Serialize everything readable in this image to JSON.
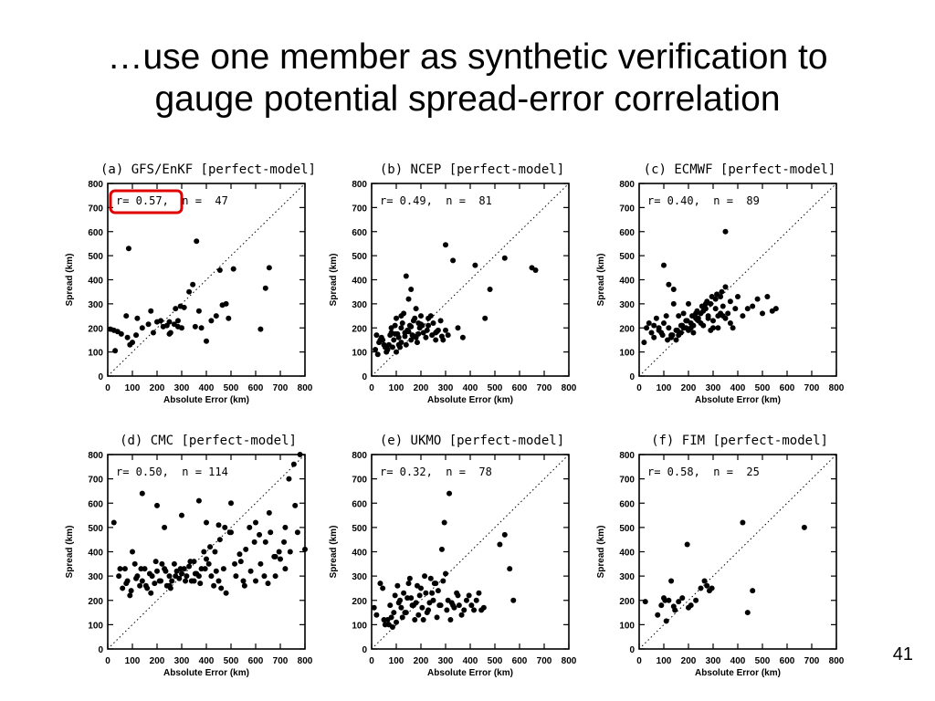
{
  "slide": {
    "title_line1": "…use one member as synthetic verification to",
    "title_line2": "gauge potential spread-error correlation",
    "page_number": "41"
  },
  "chart_data": [
    {
      "type": "scatter",
      "title": "(a) GFS/EnKF [perfect-model]",
      "stats": "r= 0.57,  n =  47",
      "highlighted": true,
      "highlight_color": "#e00000",
      "xlabel": "Absolute Error (km)",
      "ylabel": "Spread (km)",
      "xlim": [
        0,
        800
      ],
      "ylim": [
        0,
        800
      ],
      "ticks": [
        0,
        100,
        200,
        300,
        400,
        500,
        600,
        700,
        800
      ],
      "reference_line": "y = x (dotted)",
      "x": [
        10,
        25,
        40,
        30,
        55,
        80,
        100,
        115,
        90,
        75,
        120,
        140,
        165,
        175,
        185,
        200,
        215,
        225,
        240,
        250,
        255,
        270,
        275,
        285,
        300,
        285,
        310,
        330,
        345,
        360,
        380,
        400,
        420,
        440,
        455,
        465,
        480,
        490,
        510,
        620,
        640,
        655,
        85,
        370,
        355,
        295,
        250
      ],
      "y": [
        195,
        190,
        185,
        105,
        175,
        160,
        140,
        170,
        130,
        250,
        240,
        200,
        215,
        270,
        180,
        225,
        230,
        205,
        210,
        225,
        180,
        215,
        280,
        205,
        200,
        230,
        285,
        350,
        380,
        560,
        200,
        145,
        230,
        250,
        440,
        295,
        300,
        240,
        445,
        195,
        365,
        450,
        530,
        270,
        205,
        290,
        175
      ]
    },
    {
      "type": "scatter",
      "title": "(b) NCEP [perfect-model]",
      "stats": "r= 0.49,  n =  81",
      "xlabel": "Absolute Error (km)",
      "ylabel": "Spread (km)",
      "xlim": [
        0,
        800
      ],
      "ylim": [
        0,
        800
      ],
      "ticks": [
        0,
        100,
        200,
        300,
        400,
        500,
        600,
        700,
        800
      ],
      "reference_line": "y = x (dotted)",
      "x": [
        15,
        25,
        30,
        40,
        45,
        55,
        60,
        70,
        75,
        80,
        90,
        95,
        100,
        105,
        110,
        115,
        120,
        125,
        130,
        135,
        140,
        145,
        150,
        155,
        160,
        165,
        170,
        175,
        180,
        185,
        190,
        195,
        200,
        210,
        220,
        230,
        240,
        250,
        260,
        270,
        280,
        290,
        300,
        310,
        330,
        350,
        370,
        420,
        460,
        480,
        540,
        650,
        665,
        20,
        35,
        50,
        65,
        85,
        100,
        110,
        120,
        135,
        150,
        160,
        175,
        190,
        205,
        225,
        245,
        265,
        285,
        95,
        140,
        160,
        180,
        200,
        230,
        260,
        300,
        120,
        80
      ],
      "y": [
        110,
        90,
        140,
        160,
        150,
        120,
        100,
        130,
        170,
        180,
        150,
        210,
        240,
        175,
        160,
        120,
        200,
        220,
        260,
        180,
        130,
        190,
        320,
        210,
        150,
        170,
        230,
        240,
        160,
        140,
        220,
        200,
        250,
        180,
        160,
        210,
        250,
        220,
        180,
        190,
        230,
        150,
        545,
        170,
        480,
        200,
        160,
        460,
        240,
        360,
        490,
        450,
        440,
        170,
        150,
        130,
        110,
        120,
        100,
        130,
        140,
        165,
        185,
        205,
        165,
        175,
        210,
        190,
        170,
        185,
        165,
        175,
        415,
        360,
        280,
        215,
        240,
        150,
        190,
        250,
        200
      ]
    },
    {
      "type": "scatter",
      "title": "(c) ECMWF [perfect-model]",
      "stats": "r= 0.40,  n =  89",
      "xlabel": "Absolute Error (km)",
      "ylabel": "Spread (km)",
      "xlim": [
        0,
        800
      ],
      "ylim": [
        0,
        800
      ],
      "ticks": [
        0,
        100,
        200,
        300,
        400,
        500,
        600,
        700,
        800
      ],
      "reference_line": "y = x (dotted)",
      "x": [
        20,
        30,
        40,
        50,
        60,
        70,
        80,
        90,
        100,
        110,
        120,
        130,
        140,
        150,
        160,
        170,
        180,
        190,
        200,
        210,
        220,
        230,
        240,
        250,
        260,
        270,
        280,
        290,
        300,
        310,
        320,
        330,
        340,
        350,
        360,
        370,
        380,
        390,
        400,
        420,
        440,
        460,
        480,
        500,
        520,
        540,
        555,
        100,
        120,
        140,
        160,
        180,
        200,
        220,
        240,
        260,
        280,
        300,
        320,
        340,
        130,
        150,
        170,
        190,
        210,
        230,
        250,
        270,
        290,
        310,
        330,
        350,
        370,
        60,
        80,
        95,
        115,
        135,
        155,
        175,
        195,
        215,
        235,
        255,
        275,
        295,
        315,
        335,
        350
      ],
      "y": [
        140,
        200,
        220,
        180,
        160,
        240,
        200,
        180,
        220,
        250,
        200,
        160,
        360,
        190,
        170,
        210,
        260,
        230,
        300,
        200,
        180,
        260,
        240,
        220,
        210,
        300,
        250,
        190,
        230,
        280,
        200,
        330,
        250,
        370,
        260,
        310,
        200,
        280,
        330,
        250,
        280,
        290,
        320,
        260,
        330,
        270,
        280,
        460,
        380,
        300,
        250,
        200,
        190,
        210,
        230,
        270,
        240,
        200,
        250,
        290,
        170,
        150,
        180,
        200,
        220,
        240,
        260,
        280,
        300,
        320,
        260,
        240,
        220,
        210,
        190,
        170,
        150,
        170,
        190,
        210,
        230,
        250,
        270,
        290,
        310,
        330,
        340,
        350,
        600
      ]
    },
    {
      "type": "scatter",
      "title": "(d) CMC [perfect-model]",
      "stats": "r= 0.50,  n = 114",
      "xlabel": "Absolute Error (km)",
      "ylabel": "Spread (km)",
      "xlim": [
        0,
        800
      ],
      "ylim": [
        0,
        800
      ],
      "ticks": [
        0,
        100,
        200,
        300,
        400,
        500,
        600,
        700,
        800
      ],
      "reference_line": "y = x (dotted)",
      "x": [
        25,
        45,
        60,
        70,
        80,
        90,
        100,
        110,
        120,
        130,
        140,
        150,
        160,
        170,
        180,
        190,
        200,
        210,
        220,
        230,
        240,
        250,
        260,
        270,
        280,
        290,
        300,
        310,
        320,
        330,
        340,
        350,
        360,
        370,
        380,
        390,
        400,
        410,
        420,
        430,
        440,
        450,
        460,
        470,
        480,
        500,
        520,
        540,
        560,
        580,
        600,
        620,
        640,
        660,
        680,
        700,
        720,
        740,
        760,
        780,
        800,
        50,
        75,
        95,
        115,
        135,
        155,
        175,
        195,
        215,
        235,
        255,
        275,
        295,
        315,
        335,
        355,
        375,
        395,
        415,
        435,
        455,
        475,
        495,
        515,
        535,
        555,
        575,
        595,
        615,
        635,
        655,
        675,
        695,
        715,
        735,
        755,
        775,
        140,
        230,
        370,
        500,
        600,
        720,
        200,
        300,
        400,
        550,
        650,
        770,
        250,
        350,
        450,
        680
      ],
      "y": [
        520,
        300,
        250,
        330,
        280,
        220,
        400,
        350,
        300,
        260,
        280,
        330,
        250,
        310,
        300,
        270,
        320,
        280,
        350,
        330,
        260,
        300,
        280,
        350,
        320,
        290,
        310,
        330,
        300,
        340,
        280,
        360,
        310,
        300,
        330,
        400,
        370,
        350,
        300,
        260,
        320,
        280,
        250,
        330,
        230,
        600,
        300,
        360,
        410,
        320,
        280,
        350,
        440,
        480,
        300,
        370,
        330,
        400,
        590,
        810,
        410,
        330,
        270,
        240,
        290,
        330,
        260,
        230,
        360,
        280,
        320,
        250,
        300,
        330,
        280,
        360,
        310,
        270,
        330,
        420,
        400,
        450,
        500,
        480,
        350,
        390,
        260,
        500,
        440,
        470,
        300,
        560,
        380,
        400,
        440,
        700,
        760,
        820,
        640,
        500,
        610,
        480,
        520,
        500,
        590,
        550,
        520,
        280,
        270,
        480,
        260,
        280,
        510,
        380
      ]
    },
    {
      "type": "scatter",
      "title": "(e) UKMO [perfect-model]",
      "stats": "r= 0.32,  n =  78",
      "xlabel": "Absolute Error (km)",
      "ylabel": "Spread (km)",
      "xlim": [
        0,
        800
      ],
      "ylim": [
        0,
        800
      ],
      "ticks": [
        0,
        100,
        200,
        300,
        400,
        500,
        600,
        700,
        800
      ],
      "reference_line": "y = x (dotted)",
      "x": [
        10,
        20,
        35,
        45,
        55,
        65,
        75,
        85,
        95,
        105,
        115,
        125,
        135,
        145,
        155,
        165,
        175,
        185,
        195,
        205,
        215,
        225,
        235,
        245,
        255,
        265,
        275,
        285,
        295,
        305,
        315,
        325,
        335,
        345,
        355,
        365,
        375,
        385,
        395,
        405,
        415,
        425,
        435,
        445,
        455,
        520,
        540,
        560,
        575,
        50,
        70,
        90,
        110,
        130,
        150,
        170,
        190,
        210,
        230,
        250,
        270,
        290,
        310,
        330,
        350,
        100,
        140,
        180,
        220,
        260,
        300,
        80,
        120,
        160,
        200,
        240,
        280,
        320
      ],
      "y": [
        170,
        140,
        270,
        250,
        100,
        120,
        180,
        90,
        220,
        260,
        200,
        130,
        150,
        210,
        290,
        180,
        120,
        260,
        220,
        170,
        300,
        150,
        190,
        230,
        270,
        130,
        180,
        410,
        520,
        160,
        640,
        190,
        170,
        230,
        180,
        140,
        160,
        200,
        220,
        180,
        160,
        200,
        230,
        160,
        170,
        430,
        470,
        330,
        200,
        120,
        100,
        150,
        190,
        230,
        270,
        180,
        140,
        120,
        160,
        200,
        240,
        280,
        200,
        180,
        220,
        110,
        150,
        190,
        230,
        270,
        310,
        130,
        170,
        210,
        250,
        290,
        180,
        120
      ]
    },
    {
      "type": "scatter",
      "title": "(f) FIM [perfect-model]",
      "stats": "r= 0.58,  n =  25",
      "xlabel": "Absolute Error (km)",
      "ylabel": "Spread (km)",
      "xlim": [
        0,
        800
      ],
      "ylim": [
        0,
        800
      ],
      "ticks": [
        0,
        100,
        200,
        300,
        400,
        500,
        600,
        700,
        800
      ],
      "reference_line": "y = x (dotted)",
      "x": [
        25,
        75,
        90,
        100,
        110,
        120,
        130,
        145,
        160,
        175,
        195,
        210,
        250,
        265,
        275,
        285,
        295,
        420,
        440,
        460,
        670,
        105,
        140,
        200,
        230
      ],
      "y": [
        195,
        140,
        180,
        210,
        115,
        200,
        280,
        160,
        195,
        210,
        430,
        180,
        250,
        280,
        260,
        240,
        250,
        520,
        150,
        240,
        500,
        200,
        175,
        170,
        200
      ]
    }
  ]
}
